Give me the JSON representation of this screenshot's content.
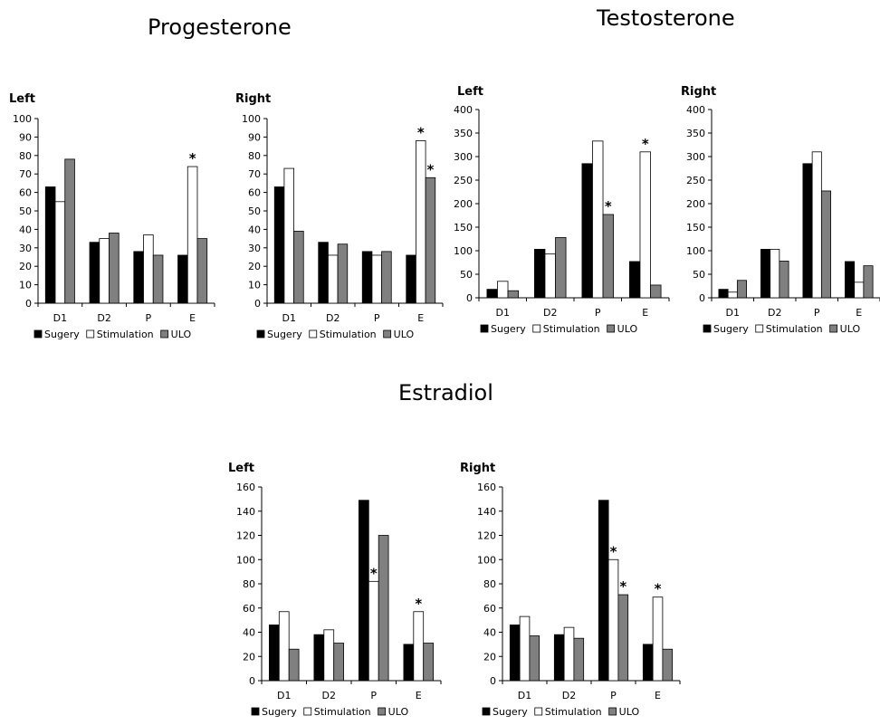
{
  "groups": [
    {
      "title": "Progesterone"
    },
    {
      "title": "Testosterone"
    },
    {
      "title": "Estradiol"
    }
  ],
  "colors": {
    "Sugery": "#000000",
    "Stimulation": "#ffffff",
    "ULO": "#808080",
    "axis": "#000000"
  },
  "chart_data": [
    {
      "group": "Progesterone",
      "title": "Left",
      "type": "bar",
      "categories": [
        "D1",
        "D2",
        "P",
        "E"
      ],
      "ylim": [
        0,
        100
      ],
      "yticks": [
        0,
        10,
        20,
        30,
        40,
        50,
        60,
        70,
        80,
        90,
        100
      ],
      "series": [
        {
          "name": "Sugery",
          "values": [
            63,
            33,
            28,
            26
          ]
        },
        {
          "name": "Stimulation",
          "values": [
            55,
            35,
            37,
            74
          ]
        },
        {
          "name": "ULO",
          "values": [
            78,
            38,
            26,
            35
          ]
        }
      ],
      "annotations": [
        {
          "category": "E",
          "series": "Stimulation",
          "text": "*"
        }
      ],
      "legend": "bottom"
    },
    {
      "group": "Progesterone",
      "title": "Right",
      "type": "bar",
      "categories": [
        "D1",
        "D2",
        "P",
        "E"
      ],
      "ylim": [
        0,
        100
      ],
      "yticks": [
        0,
        10,
        20,
        30,
        40,
        50,
        60,
        70,
        80,
        90,
        100
      ],
      "series": [
        {
          "name": "Sugery",
          "values": [
            63,
            33,
            28,
            26
          ]
        },
        {
          "name": "Stimulation",
          "values": [
            73,
            26,
            26,
            88
          ]
        },
        {
          "name": "ULO",
          "values": [
            39,
            32,
            28,
            68
          ]
        }
      ],
      "annotations": [
        {
          "category": "E",
          "series": "Stimulation",
          "text": "*"
        },
        {
          "category": "E",
          "series": "ULO",
          "text": "*"
        }
      ],
      "legend": "bottom"
    },
    {
      "group": "Testosterone",
      "title": "Left",
      "type": "bar",
      "categories": [
        "D1",
        "D2",
        "P",
        "E"
      ],
      "ylim": [
        0,
        400
      ],
      "yticks": [
        0,
        50,
        100,
        150,
        200,
        250,
        300,
        350,
        400
      ],
      "series": [
        {
          "name": "Sugery",
          "values": [
            18,
            103,
            285,
            77
          ]
        },
        {
          "name": "Stimulation",
          "values": [
            35,
            93,
            333,
            310
          ]
        },
        {
          "name": "ULO",
          "values": [
            15,
            128,
            177,
            27
          ]
        }
      ],
      "annotations": [
        {
          "category": "P",
          "series": "ULO",
          "text": "*"
        },
        {
          "category": "E",
          "series": "Stimulation",
          "text": "*"
        }
      ],
      "legend": "bottom"
    },
    {
      "group": "Testosterone",
      "title": "Right",
      "type": "bar",
      "categories": [
        "D1",
        "D2",
        "P",
        "E"
      ],
      "ylim": [
        0,
        400
      ],
      "yticks": [
        0,
        50,
        100,
        150,
        200,
        250,
        300,
        350,
        400
      ],
      "series": [
        {
          "name": "Sugery",
          "values": [
            18,
            103,
            285,
            77
          ]
        },
        {
          "name": "Stimulation",
          "values": [
            12,
            103,
            310,
            33
          ]
        },
        {
          "name": "ULO",
          "values": [
            37,
            78,
            227,
            68
          ]
        }
      ],
      "annotations": [],
      "legend": "bottom"
    },
    {
      "group": "Estradiol",
      "title": "Left",
      "type": "bar",
      "categories": [
        "D1",
        "D2",
        "P",
        "E"
      ],
      "ylim": [
        0,
        160
      ],
      "yticks": [
        0,
        20,
        40,
        60,
        80,
        100,
        120,
        140,
        160
      ],
      "series": [
        {
          "name": "Sugery",
          "values": [
            46,
            38,
            149,
            30
          ]
        },
        {
          "name": "Stimulation",
          "values": [
            57,
            42,
            82,
            57
          ]
        },
        {
          "name": "ULO",
          "values": [
            26,
            31,
            120,
            31
          ]
        }
      ],
      "annotations": [
        {
          "category": "P",
          "series": "Stimulation",
          "text": "*"
        },
        {
          "category": "E",
          "series": "Stimulation",
          "text": "*"
        }
      ],
      "legend": "bottom"
    },
    {
      "group": "Estradiol",
      "title": "Right",
      "type": "bar",
      "categories": [
        "D1",
        "D2",
        "P",
        "E"
      ],
      "ylim": [
        0,
        160
      ],
      "yticks": [
        0,
        20,
        40,
        60,
        80,
        100,
        120,
        140,
        160
      ],
      "series": [
        {
          "name": "Sugery",
          "values": [
            46,
            38,
            149,
            30
          ]
        },
        {
          "name": "Stimulation",
          "values": [
            53,
            44,
            100,
            69
          ]
        },
        {
          "name": "ULO",
          "values": [
            37,
            35,
            71,
            26
          ]
        }
      ],
      "annotations": [
        {
          "category": "P",
          "series": "Stimulation",
          "text": "*"
        },
        {
          "category": "P",
          "series": "ULO",
          "text": "*"
        },
        {
          "category": "E",
          "series": "Stimulation",
          "text": "*"
        }
      ],
      "legend": "bottom"
    }
  ]
}
